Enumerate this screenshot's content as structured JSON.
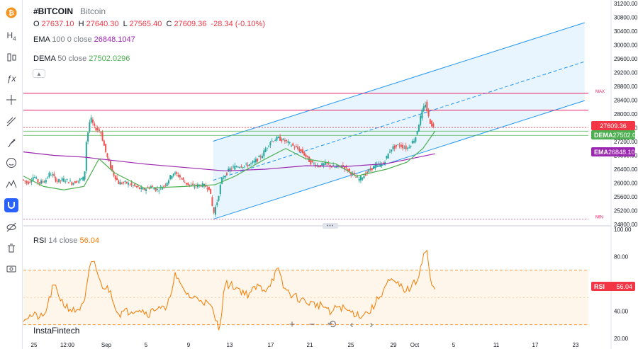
{
  "symbol": {
    "ticker": "#BITCOIN",
    "name": "Bitcoin"
  },
  "ohlc": {
    "o_label": "O",
    "o": "27637.10",
    "h_label": "H",
    "h": "27640.30",
    "l_label": "L",
    "l": "27565.40",
    "c_label": "C",
    "c": "27609.36",
    "change": "-28.34 (-0.10%)"
  },
  "ema": {
    "name": "EMA",
    "params": "100 0 close",
    "value": "26848.1047"
  },
  "dema": {
    "name": "DEMA",
    "params": "50 close",
    "value": "27502.0296"
  },
  "rsi": {
    "name": "RSI",
    "params": "14 close",
    "value": "56.04"
  },
  "brand": "InstaFintech",
  "price_tags": {
    "last": "27609.36",
    "dema_name": "DEMA",
    "dema_value": "27502.03",
    "ema_name": "EMA",
    "ema_value": "26848.10",
    "rsi_name": "RSI",
    "rsi_value": "56.04"
  },
  "markers": {
    "max": "MAX",
    "min": "MIN"
  },
  "colors": {
    "up": "#26a69a",
    "down": "#ef5350",
    "ema": "#9c27b0",
    "dema": "#4caf50",
    "rsi": "#f57c00",
    "channel": "#2196f3",
    "hline": "#e91e63",
    "last": "#f23645"
  },
  "icons": [
    "bitcoin-icon",
    "h4-icon",
    "bar-style-icon",
    "fx-icon",
    "crosshair-icon",
    "trend-tools-icon",
    "brush-icon",
    "emoji-icon",
    "pattern-icon",
    "magnet-icon",
    "eye-off-icon",
    "trash-icon",
    "camera-icon"
  ],
  "zoom_controls": [
    "+",
    "−",
    "⟲",
    "‹",
    "›"
  ],
  "chart_data": [
    {
      "type": "candlestick",
      "ylim": [
        24800,
        31200
      ],
      "y_ticks": [
        "31200.00",
        "30800.00",
        "30400.00",
        "30000.00",
        "29600.00",
        "29200.00",
        "28800.00",
        "28400.00",
        "28000.00",
        "27600.00",
        "27200.00",
        "26800.00",
        "26400.00",
        "26000.00",
        "25600.00",
        "25200.00",
        "24800.00"
      ],
      "x_ticks": [
        "25",
        "12:00",
        "Sep",
        "5",
        "9",
        "13",
        "17",
        "21",
        "25",
        "29",
        "Oct",
        "5",
        "11",
        "17",
        "23"
      ],
      "price_path": [
        [
          0,
          26100
        ],
        [
          6,
          26000
        ],
        [
          12,
          26200
        ],
        [
          17,
          26000
        ],
        [
          24,
          26100
        ],
        [
          28,
          26300
        ],
        [
          35,
          26050
        ],
        [
          42,
          26100
        ],
        [
          50,
          26000
        ],
        [
          58,
          26100
        ],
        [
          62,
          26150
        ],
        [
          64,
          27200
        ],
        [
          68,
          27900
        ],
        [
          72,
          27600
        ],
        [
          78,
          27500
        ],
        [
          84,
          26800
        ],
        [
          90,
          26300
        ],
        [
          96,
          26000
        ],
        [
          104,
          26000
        ],
        [
          112,
          25900
        ],
        [
          120,
          25800
        ],
        [
          128,
          25900
        ],
        [
          134,
          25800
        ],
        [
          142,
          25950
        ],
        [
          150,
          26300
        ],
        [
          156,
          26200
        ],
        [
          162,
          26000
        ],
        [
          170,
          25900
        ],
        [
          178,
          25950
        ],
        [
          186,
          25850
        ],
        [
          190,
          25100
        ],
        [
          194,
          25500
        ],
        [
          198,
          26100
        ],
        [
          206,
          26400
        ],
        [
          214,
          26500
        ],
        [
          222,
          26500
        ],
        [
          230,
          26600
        ],
        [
          238,
          26800
        ],
        [
          246,
          27200
        ],
        [
          254,
          27300
        ],
        [
          262,
          27200
        ],
        [
          270,
          27050
        ],
        [
          278,
          26900
        ],
        [
          286,
          26600
        ],
        [
          294,
          26500
        ],
        [
          302,
          26550
        ],
        [
          310,
          26450
        ],
        [
          318,
          26500
        ],
        [
          326,
          26300
        ],
        [
          334,
          26100
        ],
        [
          342,
          26300
        ],
        [
          350,
          26500
        ],
        [
          358,
          26550
        ],
        [
          366,
          27000
        ],
        [
          374,
          27100
        ],
        [
          382,
          27000
        ],
        [
          390,
          27300
        ],
        [
          396,
          28000
        ],
        [
          400,
          28300
        ],
        [
          404,
          27800
        ],
        [
          408,
          27609
        ]
      ],
      "ema100_path": [
        [
          0,
          26900
        ],
        [
          30,
          26800
        ],
        [
          60,
          26750
        ],
        [
          90,
          26650
        ],
        [
          120,
          26550
        ],
        [
          160,
          26450
        ],
        [
          200,
          26350
        ],
        [
          240,
          26400
        ],
        [
          280,
          26500
        ],
        [
          320,
          26480
        ],
        [
          360,
          26560
        ],
        [
          408,
          26848
        ]
      ],
      "dema50_path": [
        [
          0,
          26200
        ],
        [
          20,
          25900
        ],
        [
          40,
          25800
        ],
        [
          60,
          25900
        ],
        [
          75,
          26700
        ],
        [
          90,
          26300
        ],
        [
          120,
          25850
        ],
        [
          160,
          25900
        ],
        [
          190,
          25950
        ],
        [
          210,
          26200
        ],
        [
          240,
          26700
        ],
        [
          260,
          27000
        ],
        [
          280,
          26700
        ],
        [
          310,
          26550
        ],
        [
          330,
          26200
        ],
        [
          360,
          26400
        ],
        [
          380,
          26600
        ],
        [
          396,
          27000
        ],
        [
          408,
          27502
        ]
      ],
      "horizontal_lines": [
        28600,
        28110,
        27609,
        27502,
        27380
      ],
      "channel": {
        "start": [
          188,
          24950
        ],
        "end": [
          472,
          27600
        ],
        "width": 2260
      },
      "max": 28600,
      "min": 24950
    },
    {
      "type": "line",
      "title": "RSI",
      "ylim": [
        20,
        100
      ],
      "y_ticks": [
        "100.00",
        "80.00",
        "60.00",
        "40.00",
        "20.00"
      ],
      "band": [
        30,
        70
      ],
      "path": [
        [
          0,
          35
        ],
        [
          10,
          37
        ],
        [
          20,
          35
        ],
        [
          30,
          59
        ],
        [
          40,
          45
        ],
        [
          50,
          40
        ],
        [
          60,
          44
        ],
        [
          66,
          72
        ],
        [
          70,
          78
        ],
        [
          76,
          60
        ],
        [
          86,
          55
        ],
        [
          94,
          38
        ],
        [
          104,
          40
        ],
        [
          114,
          42
        ],
        [
          124,
          38
        ],
        [
          134,
          44
        ],
        [
          142,
          40
        ],
        [
          150,
          67
        ],
        [
          156,
          58
        ],
        [
          166,
          50
        ],
        [
          176,
          49
        ],
        [
          186,
          43
        ],
        [
          194,
          27
        ],
        [
          200,
          60
        ],
        [
          210,
          58
        ],
        [
          222,
          52
        ],
        [
          232,
          58
        ],
        [
          240,
          56
        ],
        [
          246,
          62
        ],
        [
          252,
          71
        ],
        [
          258,
          57
        ],
        [
          266,
          52
        ],
        [
          276,
          48
        ],
        [
          288,
          45
        ],
        [
          298,
          44
        ],
        [
          304,
          38
        ],
        [
          312,
          44
        ],
        [
          322,
          40
        ],
        [
          334,
          37
        ],
        [
          344,
          40
        ],
        [
          354,
          52
        ],
        [
          362,
          62
        ],
        [
          370,
          60
        ],
        [
          380,
          55
        ],
        [
          390,
          62
        ],
        [
          396,
          80
        ],
        [
          400,
          85
        ],
        [
          404,
          58
        ],
        [
          408,
          56
        ]
      ]
    }
  ]
}
